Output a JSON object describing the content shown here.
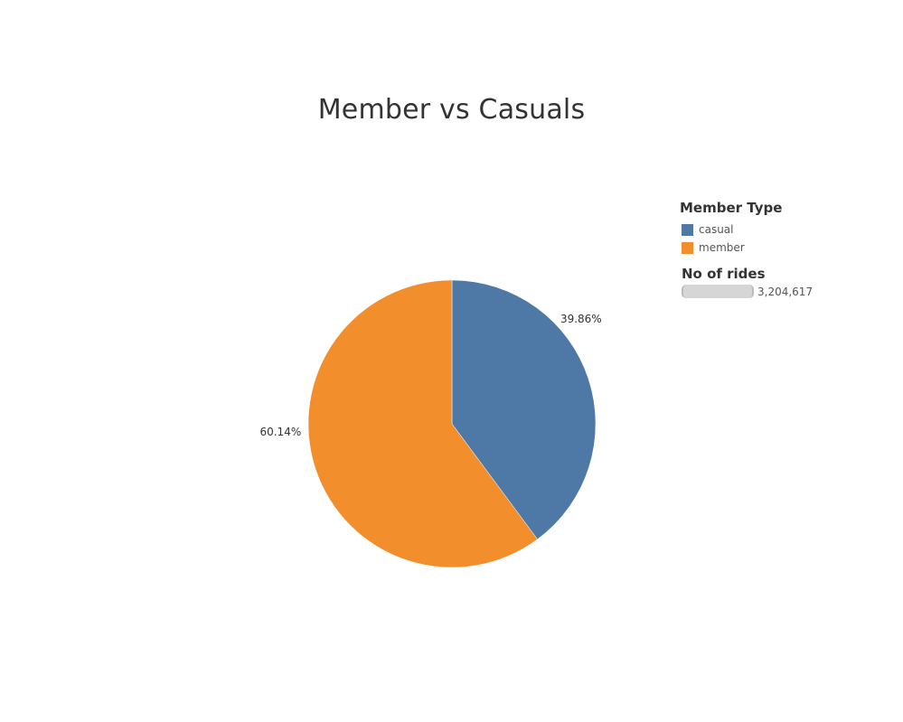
{
  "chart_data": {
    "type": "pie",
    "title": "Member vs Casuals",
    "categories": [
      "casual",
      "member"
    ],
    "values": [
      39.86,
      60.14
    ],
    "value_labels": [
      "39.86%",
      "60.14%"
    ],
    "colors": [
      "#4e79a7",
      "#f28e2b"
    ],
    "legend": {
      "title": "Member Type",
      "placement": "right",
      "items": [
        {
          "label": "casual",
          "color": "#4e79a7"
        },
        {
          "label": "member",
          "color": "#f28e2b"
        }
      ]
    },
    "size_legend": {
      "title": "No of rides",
      "value": "3,204,617"
    }
  }
}
